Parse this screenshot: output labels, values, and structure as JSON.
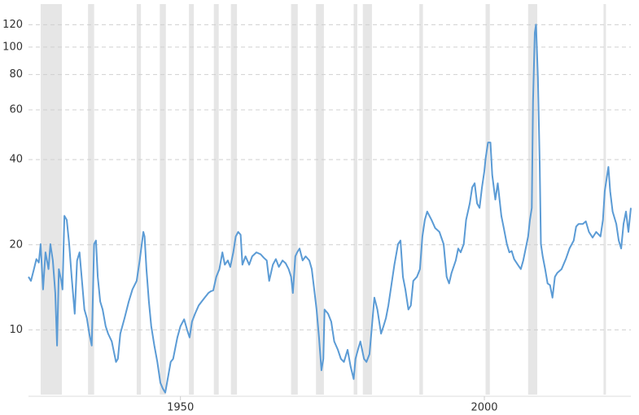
{
  "chart_data": {
    "type": "line",
    "log_y": true,
    "grid": true,
    "xlim": [
      1925.0,
      2024.1
    ],
    "xticks": [
      1950,
      2000
    ],
    "ylim": [
      5.9,
      142
    ],
    "yticks": [
      10,
      20,
      40,
      60,
      80,
      100,
      120
    ],
    "band_color": "#e6e6e6",
    "recessions": [
      [
        1927.0,
        1930.5
      ],
      [
        1934.8,
        1935.8
      ],
      [
        1942.8,
        1943.5
      ],
      [
        1946.6,
        1947.6
      ],
      [
        1951.4,
        1952.2
      ],
      [
        1955.5,
        1956.3
      ],
      [
        1958.3,
        1959.3
      ],
      [
        1968.2,
        1969.3
      ],
      [
        1972.3,
        1973.6
      ],
      [
        1978.5,
        1979.1
      ],
      [
        1980.0,
        1981.5
      ],
      [
        1989.3,
        1989.9
      ],
      [
        2000.2,
        2000.9
      ],
      [
        2007.2,
        2008.7
      ],
      [
        2019.6,
        2020.0
      ]
    ],
    "x": [
      1925.0,
      1925.4,
      1925.9,
      1926.3,
      1926.7,
      1927.0,
      1927.4,
      1927.8,
      1928.3,
      1928.6,
      1929.0,
      1929.4,
      1929.7,
      1930.0,
      1930.4,
      1930.6,
      1930.9,
      1931.3,
      1931.7,
      1932.1,
      1932.6,
      1933.0,
      1933.4,
      1933.8,
      1934.2,
      1934.6,
      1935.0,
      1935.4,
      1935.8,
      1936.1,
      1936.4,
      1936.8,
      1937.2,
      1937.7,
      1938.1,
      1938.7,
      1939.4,
      1939.7,
      1940.1,
      1940.8,
      1941.5,
      1942.1,
      1942.8,
      1943.3,
      1943.9,
      1944.1,
      1944.4,
      1944.8,
      1945.2,
      1945.7,
      1946.2,
      1946.7,
      1947.1,
      1947.5,
      1947.9,
      1948.4,
      1948.8,
      1949.5,
      1950.0,
      1950.6,
      1951.1,
      1951.5,
      1951.9,
      1952.4,
      1953.0,
      1953.5,
      1954.0,
      1954.6,
      1955.0,
      1955.4,
      1955.9,
      1956.4,
      1956.9,
      1957.3,
      1957.8,
      1958.2,
      1958.7,
      1959.1,
      1959.5,
      1959.9,
      1960.2,
      1960.7,
      1961.3,
      1961.8,
      1962.5,
      1963.2,
      1963.7,
      1964.2,
      1964.6,
      1965.2,
      1965.7,
      1966.2,
      1966.8,
      1967.3,
      1967.8,
      1968.2,
      1968.5,
      1968.9,
      1969.2,
      1969.6,
      1970.1,
      1970.6,
      1971.2,
      1971.6,
      1972.0,
      1972.4,
      1972.8,
      1973.2,
      1973.5,
      1973.7,
      1974.3,
      1974.8,
      1975.3,
      1975.9,
      1976.4,
      1976.9,
      1977.5,
      1978.0,
      1978.5,
      1978.8,
      1979.2,
      1979.6,
      1980.2,
      1980.6,
      1981.1,
      1981.5,
      1981.9,
      1982.4,
      1983.0,
      1983.4,
      1983.8,
      1984.2,
      1984.7,
      1985.2,
      1985.8,
      1986.2,
      1986.6,
      1987.0,
      1987.5,
      1987.9,
      1988.3,
      1988.9,
      1989.4,
      1989.8,
      1990.2,
      1990.6,
      1991.3,
      1991.9,
      1992.6,
      1993.3,
      1993.8,
      1994.2,
      1994.6,
      1995.3,
      1995.7,
      1996.1,
      1996.6,
      1997.0,
      1997.6,
      1998.0,
      1998.4,
      1998.8,
      1999.2,
      1999.6,
      2000.0,
      2000.2,
      2000.6,
      2001.0,
      2001.3,
      2001.8,
      2002.2,
      2002.8,
      2003.2,
      2003.7,
      2004.1,
      2004.5,
      2004.9,
      2005.5,
      2006.0,
      2006.4,
      2006.8,
      2007.2,
      2007.5,
      2007.8,
      2008.0,
      2008.3,
      2008.5,
      2008.8,
      2009.1,
      2009.3,
      2009.6,
      2010.0,
      2010.4,
      2010.8,
      2011.2,
      2011.6,
      2012.0,
      2012.7,
      2013.4,
      2014.0,
      2014.7,
      2015.1,
      2015.5,
      2016.2,
      2016.7,
      2017.2,
      2017.8,
      2018.4,
      2019.1,
      2019.5,
      2019.8,
      2020.2,
      2020.4,
      2020.7,
      2021.1,
      2021.7,
      2022.1,
      2022.5,
      2022.9,
      2023.3,
      2023.7,
      2024.1
    ],
    "series": [
      {
        "color": "#5b9bd5",
        "values": [
          15.4,
          14.9,
          16.4,
          17.8,
          17.3,
          20.1,
          13.9,
          18.8,
          16.4,
          20.1,
          17.6,
          13.5,
          8.8,
          16.4,
          14.9,
          13.9,
          25.3,
          24.5,
          20.1,
          15.4,
          11.4,
          17.6,
          18.8,
          14.9,
          11.8,
          11.0,
          9.7,
          8.8,
          20.1,
          20.7,
          15.4,
          12.6,
          11.8,
          10.3,
          9.7,
          9.1,
          7.7,
          7.9,
          9.7,
          11.0,
          12.6,
          13.9,
          14.9,
          17.6,
          22.2,
          21.4,
          16.4,
          12.6,
          10.3,
          8.8,
          7.7,
          6.5,
          6.2,
          6.0,
          6.7,
          7.7,
          7.9,
          9.4,
          10.3,
          10.9,
          10.0,
          9.4,
          10.7,
          11.4,
          12.2,
          12.6,
          13.0,
          13.5,
          13.7,
          13.8,
          15.4,
          16.4,
          18.8,
          17.0,
          17.6,
          16.7,
          18.8,
          21.4,
          22.2,
          21.7,
          17.0,
          18.2,
          17.0,
          18.2,
          18.8,
          18.5,
          18.0,
          17.6,
          14.9,
          17.0,
          17.8,
          16.7,
          17.6,
          17.2,
          16.4,
          15.4,
          13.5,
          18.2,
          18.8,
          19.4,
          17.6,
          18.2,
          17.6,
          16.4,
          13.9,
          11.8,
          9.4,
          7.2,
          7.9,
          11.8,
          11.4,
          10.7,
          9.1,
          8.5,
          7.9,
          7.7,
          8.5,
          7.4,
          6.7,
          7.9,
          8.5,
          9.1,
          7.9,
          7.7,
          8.2,
          10.3,
          13.0,
          11.8,
          9.7,
          10.3,
          11.0,
          12.2,
          14.4,
          17.0,
          20.1,
          20.7,
          15.4,
          13.9,
          11.8,
          12.2,
          14.9,
          15.4,
          16.4,
          21.4,
          24.5,
          26.2,
          24.5,
          22.9,
          22.2,
          20.1,
          15.4,
          14.6,
          15.9,
          17.6,
          19.4,
          18.8,
          20.1,
          24.5,
          28.0,
          31.9,
          33.0,
          28.0,
          27.0,
          31.9,
          36.4,
          40.3,
          46.0,
          46.0,
          35.3,
          28.9,
          33.0,
          25.3,
          22.9,
          20.1,
          18.8,
          19.0,
          17.8,
          17.0,
          16.4,
          17.6,
          19.4,
          21.4,
          24.5,
          27.0,
          64.0,
          112.5,
          120.2,
          78.1,
          38.9,
          20.1,
          18.2,
          16.4,
          14.6,
          14.4,
          13.0,
          15.4,
          15.9,
          16.4,
          17.8,
          19.4,
          20.7,
          23.2,
          23.7,
          23.7,
          24.2,
          22.2,
          21.2,
          22.2,
          21.4,
          24.5,
          30.9,
          35.3,
          37.7,
          30.9,
          26.2,
          23.7,
          20.7,
          19.4,
          23.7,
          26.2,
          22.2,
          27.0
        ]
      }
    ]
  }
}
